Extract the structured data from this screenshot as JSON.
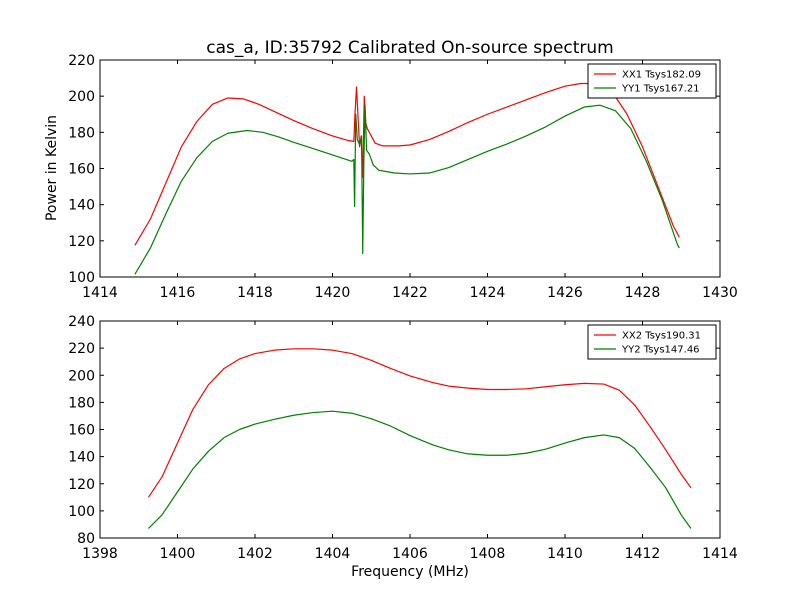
{
  "chart_data": [
    {
      "type": "line",
      "title": "cas_a, ID:35792 Calibrated On-source spectrum",
      "xlabel": "",
      "ylabel": "Power in Kelvin",
      "xlim": [
        1414,
        1430
      ],
      "ylim": [
        100,
        220
      ],
      "xticks": [
        1414,
        1416,
        1418,
        1420,
        1422,
        1424,
        1426,
        1428,
        1430
      ],
      "yticks": [
        100,
        120,
        140,
        160,
        180,
        200,
        220
      ],
      "legend_position": "top-right",
      "grid": false,
      "series": [
        {
          "name": "XX1 Tsys182.09",
          "color": "#ff0000",
          "points": [
            [
              1414.9,
              117.5
            ],
            [
              1415.3,
              132
            ],
            [
              1415.7,
              152
            ],
            [
              1416.1,
              172
            ],
            [
              1416.5,
              186
            ],
            [
              1416.9,
              195.5
            ],
            [
              1417.3,
              199
            ],
            [
              1417.7,
              198.5
            ],
            [
              1418.1,
              195.5
            ],
            [
              1418.5,
              191.5
            ],
            [
              1419.0,
              186.5
            ],
            [
              1419.5,
              182
            ],
            [
              1420.0,
              178
            ],
            [
              1420.4,
              175.5
            ],
            [
              1420.55,
              175
            ],
            [
              1420.58,
              190
            ],
            [
              1420.62,
              205
            ],
            [
              1420.66,
              188
            ],
            [
              1420.7,
              172
            ],
            [
              1420.74,
              178
            ],
            [
              1420.78,
              155
            ],
            [
              1420.82,
              200
            ],
            [
              1420.86,
              185
            ],
            [
              1420.9,
              182
            ],
            [
              1421.0,
              178
            ],
            [
              1421.1,
              174
            ],
            [
              1421.3,
              172.5
            ],
            [
              1421.7,
              172.5
            ],
            [
              1422.0,
              173
            ],
            [
              1422.5,
              176
            ],
            [
              1423.0,
              180.5
            ],
            [
              1423.5,
              185.5
            ],
            [
              1424.0,
              190
            ],
            [
              1424.5,
              194
            ],
            [
              1425.0,
              198
            ],
            [
              1425.5,
              202
            ],
            [
              1426.0,
              205.5
            ],
            [
              1426.4,
              207
            ],
            [
              1426.8,
              207
            ],
            [
              1427.2,
              203
            ],
            [
              1427.6,
              190
            ],
            [
              1428.0,
              172
            ],
            [
              1428.4,
              150
            ],
            [
              1428.8,
              128
            ],
            [
              1428.95,
              122
            ]
          ]
        },
        {
          "name": "YY1 Tsys167.21",
          "color": "#008000",
          "points": [
            [
              1414.9,
              101.5
            ],
            [
              1415.3,
              116
            ],
            [
              1415.7,
              135
            ],
            [
              1416.1,
              153
            ],
            [
              1416.5,
              166
            ],
            [
              1416.9,
              175
            ],
            [
              1417.3,
              179.5
            ],
            [
              1417.8,
              181
            ],
            [
              1418.2,
              180
            ],
            [
              1418.6,
              177.5
            ],
            [
              1419.0,
              174.5
            ],
            [
              1419.5,
              171
            ],
            [
              1420.0,
              167.5
            ],
            [
              1420.5,
              164
            ],
            [
              1420.55,
              165
            ],
            [
              1420.57,
              139
            ],
            [
              1420.6,
              190
            ],
            [
              1420.64,
              176
            ],
            [
              1420.7,
              173
            ],
            [
              1420.75,
              178
            ],
            [
              1420.78,
              113
            ],
            [
              1420.81,
              165
            ],
            [
              1420.84,
              195
            ],
            [
              1420.88,
              170
            ],
            [
              1420.95,
              168
            ],
            [
              1421.05,
              162
            ],
            [
              1421.2,
              159
            ],
            [
              1421.6,
              157.5
            ],
            [
              1422.0,
              157
            ],
            [
              1422.5,
              157.5
            ],
            [
              1423.0,
              160.5
            ],
            [
              1423.5,
              165
            ],
            [
              1424.0,
              169.5
            ],
            [
              1424.5,
              173.5
            ],
            [
              1425.0,
              178
            ],
            [
              1425.5,
              183
            ],
            [
              1426.0,
              189
            ],
            [
              1426.5,
              194
            ],
            [
              1426.9,
              195
            ],
            [
              1427.3,
              192
            ],
            [
              1427.7,
              182
            ],
            [
              1428.1,
              164
            ],
            [
              1428.5,
              143
            ],
            [
              1428.9,
              118
            ],
            [
              1428.95,
              116
            ]
          ]
        }
      ]
    },
    {
      "type": "line",
      "title": "",
      "xlabel": "Frequency (MHz)",
      "ylabel": "",
      "xlim": [
        1398,
        1414
      ],
      "ylim": [
        80,
        240
      ],
      "xticks": [
        1398,
        1400,
        1402,
        1404,
        1406,
        1408,
        1410,
        1412,
        1414
      ],
      "yticks": [
        80,
        100,
        120,
        140,
        160,
        180,
        200,
        220,
        240
      ],
      "legend_position": "top-right",
      "grid": false,
      "series": [
        {
          "name": "XX2 Tsys190.31",
          "color": "#ff0000",
          "points": [
            [
              1399.25,
              110
            ],
            [
              1399.6,
              125
            ],
            [
              1400.0,
              150
            ],
            [
              1400.4,
              175
            ],
            [
              1400.8,
              193
            ],
            [
              1401.2,
              205
            ],
            [
              1401.6,
              212
            ],
            [
              1402.0,
              216
            ],
            [
              1402.5,
              218.5
            ],
            [
              1403.0,
              219.5
            ],
            [
              1403.5,
              219.5
            ],
            [
              1404.0,
              218.5
            ],
            [
              1404.5,
              216
            ],
            [
              1405.0,
              211
            ],
            [
              1405.5,
              205
            ],
            [
              1406.0,
              199.5
            ],
            [
              1406.3,
              197
            ],
            [
              1406.6,
              194.5
            ],
            [
              1407.0,
              192
            ],
            [
              1407.5,
              190.5
            ],
            [
              1408.0,
              189.5
            ],
            [
              1408.5,
              189.5
            ],
            [
              1409.0,
              190
            ],
            [
              1409.5,
              191.5
            ],
            [
              1410.0,
              193
            ],
            [
              1410.5,
              194
            ],
            [
              1411.0,
              193.5
            ],
            [
              1411.4,
              189
            ],
            [
              1411.8,
              178
            ],
            [
              1412.2,
              162
            ],
            [
              1412.6,
              145
            ],
            [
              1413.0,
              127
            ],
            [
              1413.25,
              117
            ]
          ]
        },
        {
          "name": "YY2 Tsys147.46",
          "color": "#008000",
          "points": [
            [
              1399.25,
              87
            ],
            [
              1399.6,
              97
            ],
            [
              1400.0,
              114
            ],
            [
              1400.4,
              131
            ],
            [
              1400.8,
              144
            ],
            [
              1401.2,
              154
            ],
            [
              1401.6,
              160
            ],
            [
              1402.0,
              164
            ],
            [
              1402.5,
              167.5
            ],
            [
              1403.0,
              170.5
            ],
            [
              1403.5,
              172.5
            ],
            [
              1404.0,
              173.5
            ],
            [
              1404.5,
              172
            ],
            [
              1405.0,
              168
            ],
            [
              1405.5,
              162.5
            ],
            [
              1406.0,
              155.5
            ],
            [
              1406.3,
              152
            ],
            [
              1406.6,
              148.5
            ],
            [
              1407.0,
              145
            ],
            [
              1407.5,
              142
            ],
            [
              1408.0,
              141
            ],
            [
              1408.5,
              141
            ],
            [
              1409.0,
              142.5
            ],
            [
              1409.5,
              145.5
            ],
            [
              1410.0,
              150
            ],
            [
              1410.5,
              154
            ],
            [
              1411.0,
              156
            ],
            [
              1411.4,
              154
            ],
            [
              1411.8,
              146
            ],
            [
              1412.2,
              132
            ],
            [
              1412.6,
              117
            ],
            [
              1413.0,
              97
            ],
            [
              1413.25,
              87
            ]
          ]
        }
      ]
    }
  ]
}
